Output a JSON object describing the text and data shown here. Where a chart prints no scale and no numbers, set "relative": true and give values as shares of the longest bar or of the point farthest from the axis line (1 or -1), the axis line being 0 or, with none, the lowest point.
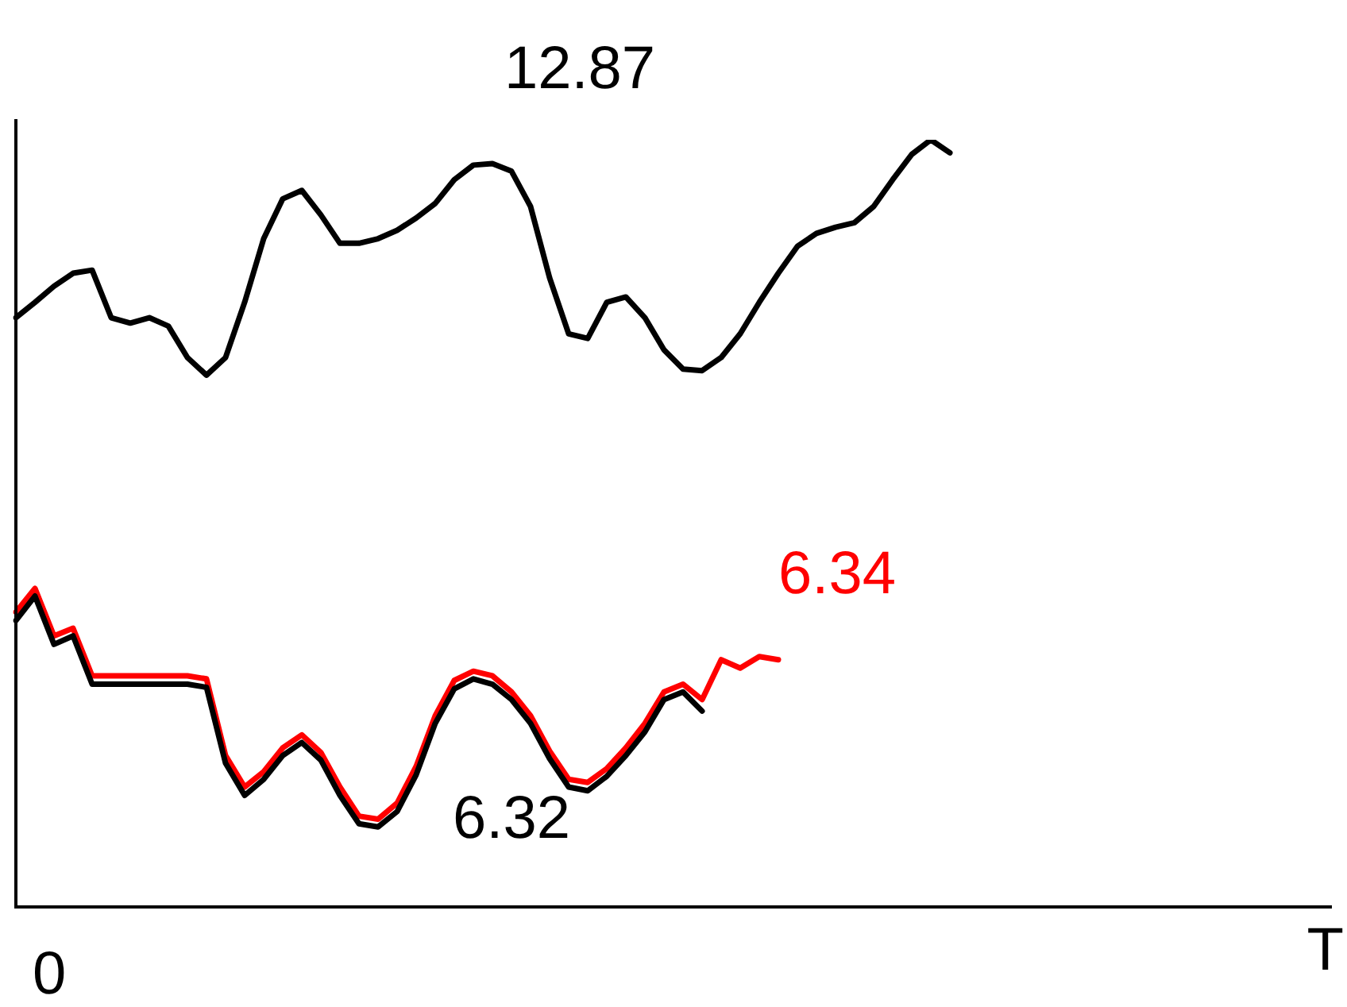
{
  "chart_data": {
    "type": "line",
    "relative": true,
    "xlabel": "T",
    "grid": false,
    "legend": false,
    "marker": "none",
    "line_style": "solid",
    "categories": [
      null,
      null,
      null,
      null,
      null,
      null,
      null,
      null,
      null,
      null,
      null,
      null,
      null,
      null,
      null,
      null,
      null,
      null,
      null,
      null,
      null,
      null,
      null,
      null,
      null,
      null,
      null,
      null,
      null,
      null,
      null,
      null,
      null,
      null,
      null,
      null,
      null,
      null,
      null,
      null,
      null,
      null,
      null,
      null,
      null,
      null,
      null,
      null,
      null,
      null,
      null,
      null,
      null,
      null,
      null,
      null,
      null,
      null,
      null,
      null,
      null,
      null,
      null,
      null,
      null,
      null,
      null,
      null,
      null,
      null
    ],
    "series": [
      {
        "color": "#000000",
        "values": [
          0.768,
          0.788,
          0.809,
          0.826,
          0.83,
          0.768,
          0.761,
          0.768,
          0.757,
          0.716,
          0.693,
          0.716,
          0.788,
          0.871,
          0.923,
          0.934,
          0.902,
          0.865,
          0.865,
          0.871,
          0.882,
          0.898,
          0.917,
          0.948,
          0.967,
          0.969,
          0.959,
          0.913,
          0.82,
          0.747,
          0.741,
          0.788,
          0.795,
          0.768,
          0.726,
          0.701,
          0.699,
          0.716,
          0.747,
          0.788,
          0.826,
          0.861,
          0.878,
          0.886,
          0.892,
          0.913,
          0.948,
          0.981,
          1,
          0.983,
          null,
          null,
          null,
          null,
          null,
          null,
          null,
          null,
          null,
          null,
          null,
          null,
          null,
          null,
          null,
          null,
          null,
          null,
          null,
          null
        ]
      },
      {
        "color": "#000000",
        "values": [
          0.373,
          0.405,
          0.342,
          0.353,
          0.29,
          0.29,
          0.29,
          0.29,
          0.29,
          0.29,
          0.286,
          0.187,
          0.145,
          0.166,
          0.197,
          0.214,
          0.191,
          0.145,
          0.108,
          0.104,
          0.124,
          0.172,
          0.239,
          0.284,
          0.297,
          0.29,
          0.27,
          0.239,
          0.193,
          0.156,
          0.151,
          0.17,
          0.197,
          0.228,
          0.27,
          0.28,
          0.255,
          null,
          null,
          null,
          null,
          null,
          null,
          null,
          null,
          null,
          null,
          null,
          null,
          null,
          null,
          null,
          null,
          null,
          null,
          null,
          null,
          null,
          null,
          null,
          null,
          null,
          null,
          null,
          null,
          null,
          null,
          null,
          null,
          null
        ]
      },
      {
        "color": "#ff0000",
        "values": [
          0.384,
          0.415,
          0.353,
          0.363,
          0.301,
          0.301,
          0.301,
          0.301,
          0.301,
          0.301,
          0.297,
          0.197,
          0.156,
          0.176,
          0.207,
          0.224,
          0.201,
          0.156,
          0.118,
          0.114,
          0.135,
          0.183,
          0.249,
          0.295,
          0.307,
          0.301,
          0.28,
          0.249,
          0.203,
          0.166,
          0.162,
          0.18,
          0.207,
          0.239,
          0.28,
          0.29,
          0.27,
          0.322,
          0.311,
          0.326,
          0.322,
          null,
          null,
          null,
          null,
          null,
          null,
          null,
          null,
          null,
          null,
          null,
          null,
          null,
          null,
          null,
          null,
          null,
          null,
          null,
          null,
          null,
          null,
          null,
          null,
          null,
          null,
          null,
          null,
          null
        ]
      }
    ],
    "annotations": [
      "12.87",
      "6.32",
      "6.34",
      "0"
    ]
  }
}
